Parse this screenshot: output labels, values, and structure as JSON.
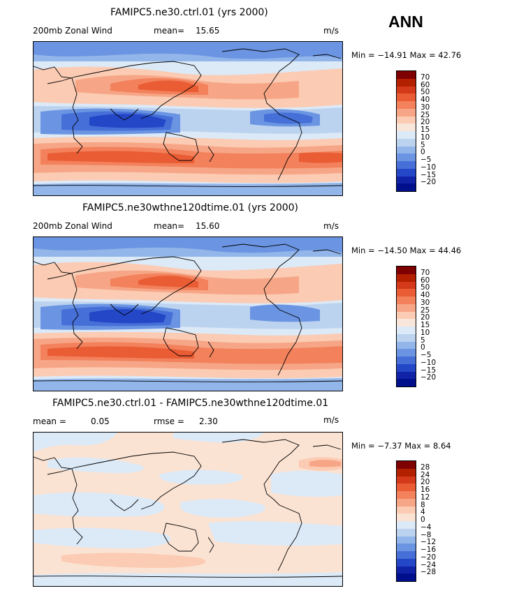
{
  "season": "ANN",
  "panels": [
    {
      "title": "FAMIPC5.ne30.ctrl.01 (yrs 2000)",
      "left_label": "200mb Zonal Wind",
      "stat1_label": "mean=",
      "stat1_value": "15.65",
      "stat2_label": "",
      "stat2_value": "",
      "units": "m/s",
      "minmax": "Min = −14.91 Max =  42.76",
      "ticks": [
        "70",
        "60",
        "50",
        "40",
        "30",
        "25",
        "20",
        "15",
        "10",
        "5",
        "0",
        "−5",
        "−10",
        "−15",
        "−20"
      ]
    },
    {
      "title": "FAMIPC5.ne30wthne120dtime.01 (yrs 2000)",
      "left_label": "200mb Zonal Wind",
      "stat1_label": "mean=",
      "stat1_value": "15.60",
      "stat2_label": "",
      "stat2_value": "",
      "units": "m/s",
      "minmax": "Min = −14.50 Max =  44.46",
      "ticks": [
        "70",
        "60",
        "50",
        "40",
        "30",
        "25",
        "20",
        "15",
        "10",
        "5",
        "0",
        "−5",
        "−10",
        "−15",
        "−20"
      ]
    },
    {
      "title": "FAMIPC5.ne30.ctrl.01 - FAMIPC5.ne30wthne120dtime.01",
      "left_label": "",
      "stat1_label": "mean =",
      "stat1_value": "0.05",
      "stat2_label": "rmse =",
      "stat2_value": "2.30",
      "units": "m/s",
      "minmax": "Min =  −7.37 Max =   8.64",
      "ticks": [
        "28",
        "24",
        "20",
        "16",
        "12",
        "8",
        "4",
        "0",
        "−4",
        "−8",
        "−12",
        "−16",
        "−20",
        "−24",
        "−28"
      ]
    }
  ],
  "colors": {
    "main_scale": [
      "#7f0000",
      "#b22000",
      "#d43a1a",
      "#e95c34",
      "#f2815c",
      "#f6a686",
      "#fbcbb3",
      "#f9e6da",
      "#dce9f7",
      "#bcd3f0",
      "#93b6ea",
      "#6b95e2",
      "#4670d8",
      "#2447c7",
      "#1023a6",
      "#000f8c"
    ],
    "diff_scale": [
      "#7f0000",
      "#b22000",
      "#d43a1a",
      "#e95c34",
      "#f2815c",
      "#f6a686",
      "#fbcbb3",
      "#fbe3d3",
      "#dce9f7",
      "#bcd3f0",
      "#93b6ea",
      "#6b95e2",
      "#4670d8",
      "#2447c7",
      "#1023a6",
      "#000f8c"
    ]
  },
  "chart_data": [
    {
      "type": "heatmap",
      "title": "FAMIPC5.ne30.ctrl.01 (yrs 2000)",
      "variable": "200mb Zonal Wind",
      "units": "m/s",
      "mean": 15.65,
      "min": -14.91,
      "max": 42.76,
      "contour_levels": [
        -20,
        -15,
        -10,
        -5,
        0,
        5,
        10,
        15,
        20,
        25,
        30,
        40,
        50,
        60,
        70
      ]
    },
    {
      "type": "heatmap",
      "title": "FAMIPC5.ne30wthne120dtime.01 (yrs 2000)",
      "variable": "200mb Zonal Wind",
      "units": "m/s",
      "mean": 15.6,
      "min": -14.5,
      "max": 44.46,
      "contour_levels": [
        -20,
        -15,
        -10,
        -5,
        0,
        5,
        10,
        15,
        20,
        25,
        30,
        40,
        50,
        60,
        70
      ]
    },
    {
      "type": "heatmap",
      "title": "FAMIPC5.ne30.ctrl.01 - FAMIPC5.ne30wthne120dtime.01",
      "units": "m/s",
      "mean": 0.05,
      "rmse": 2.3,
      "min": -7.37,
      "max": 8.64,
      "contour_levels": [
        -28,
        -24,
        -20,
        -16,
        -12,
        -8,
        -4,
        0,
        4,
        8,
        12,
        16,
        20,
        24,
        28
      ]
    }
  ]
}
